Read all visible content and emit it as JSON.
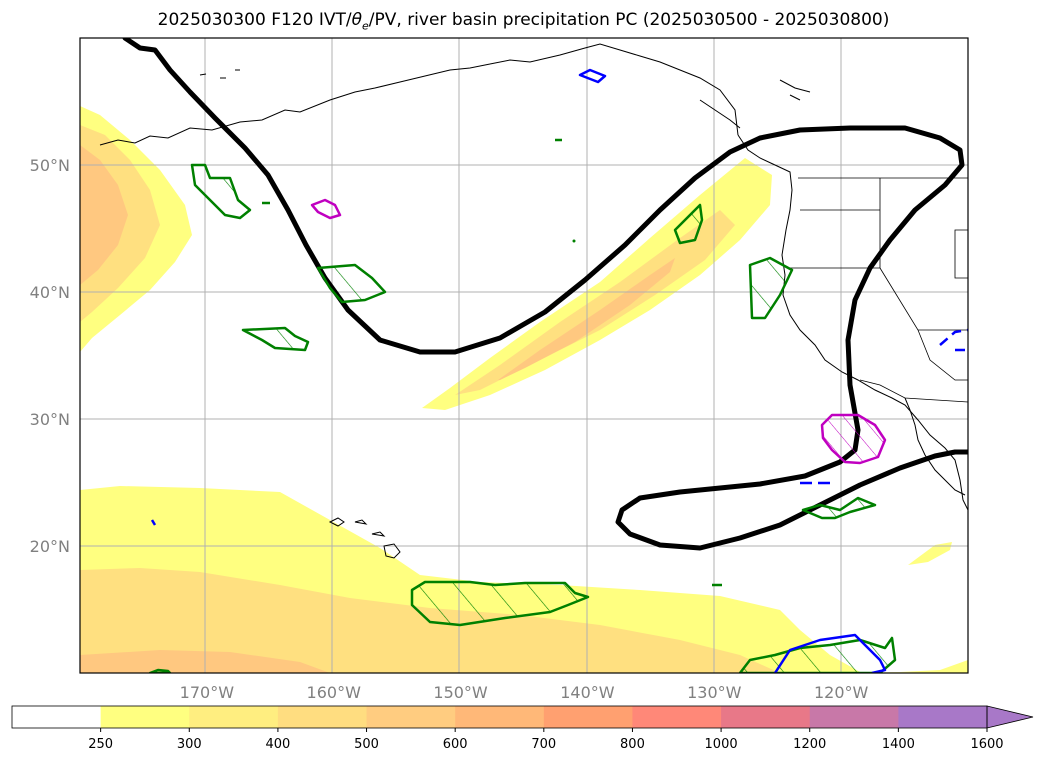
{
  "title": {
    "prefix": "2025030300 F120 IVT/",
    "theta": "θ",
    "theta_sub": "e",
    "suffix": "/PV, river basin precipitation PC (2025030500 - 2025030800)"
  },
  "map": {
    "lon_range": [
      -180,
      -110
    ],
    "lat_range": [
      10,
      60
    ],
    "lon_ticks": [
      {
        "value": -170,
        "label": "170°W"
      },
      {
        "value": -160,
        "label": "160°W"
      },
      {
        "value": -150,
        "label": "150°W"
      },
      {
        "value": -140,
        "label": "140°W"
      },
      {
        "value": -130,
        "label": "130°W"
      },
      {
        "value": -120,
        "label": "120°W"
      }
    ],
    "lat_ticks": [
      {
        "value": 50,
        "label": "50°N"
      },
      {
        "value": 40,
        "label": "40°N"
      },
      {
        "value": 30,
        "label": "30°N"
      },
      {
        "value": 20,
        "label": "20°N"
      }
    ],
    "grid": true
  },
  "colorbar": {
    "levels": [
      "250",
      "300",
      "400",
      "500",
      "600",
      "700",
      "800",
      "1000",
      "1200",
      "1400",
      "1600"
    ],
    "colors": [
      "#ffffff",
      "#ffff80",
      "#ffee80",
      "#ffdd80",
      "#ffcc80",
      "#ffb878",
      "#ffa070",
      "#ff8878",
      "#e87888",
      "#c878a8",
      "#a878c8"
    ],
    "extend": "max"
  },
  "colors": {
    "ivt_light": "#ffff80",
    "ivt_mid": "#ffe080",
    "ivt_dark": "#ffc880",
    "pv_contour": "#000000",
    "precip_green": "#008000",
    "precip_blue": "#0000ff",
    "precip_magenta": "#c000c0",
    "grid": "#b0b0b0"
  }
}
